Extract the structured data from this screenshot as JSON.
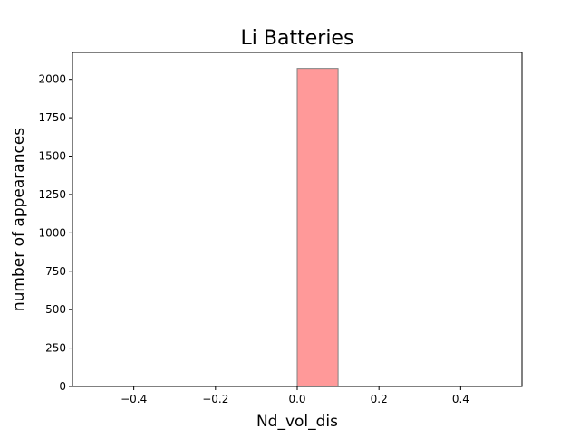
{
  "chart_data": {
    "type": "bar",
    "title": "Li Batteries",
    "xlabel": "Nd_vol_dis",
    "ylabel": "number of appearances",
    "xlim": [
      -0.55,
      0.55
    ],
    "ylim": [
      0,
      2175
    ],
    "grid": false,
    "x_ticks": [
      {
        "value": -0.4,
        "label": "−0.4"
      },
      {
        "value": -0.2,
        "label": "−0.2"
      },
      {
        "value": 0.0,
        "label": "0.0"
      },
      {
        "value": 0.2,
        "label": "0.2"
      },
      {
        "value": 0.4,
        "label": "0.4"
      }
    ],
    "y_ticks": [
      {
        "value": 0,
        "label": "0"
      },
      {
        "value": 250,
        "label": "250"
      },
      {
        "value": 500,
        "label": "500"
      },
      {
        "value": 750,
        "label": "750"
      },
      {
        "value": 1000,
        "label": "1000"
      },
      {
        "value": 1250,
        "label": "1250"
      },
      {
        "value": 1500,
        "label": "1500"
      },
      {
        "value": 1750,
        "label": "1750"
      },
      {
        "value": 2000,
        "label": "2000"
      }
    ],
    "bins": [
      {
        "start": -0.5,
        "end": -0.4,
        "count": 0
      },
      {
        "start": -0.4,
        "end": -0.3,
        "count": 0
      },
      {
        "start": -0.3,
        "end": -0.2,
        "count": 0
      },
      {
        "start": -0.2,
        "end": -0.1,
        "count": 0
      },
      {
        "start": -0.1,
        "end": 0.0,
        "count": 0
      },
      {
        "start": 0.0,
        "end": 0.1,
        "count": 2071
      },
      {
        "start": 0.1,
        "end": 0.2,
        "count": 0
      },
      {
        "start": 0.2,
        "end": 0.3,
        "count": 0
      },
      {
        "start": 0.3,
        "end": 0.4,
        "count": 0
      },
      {
        "start": 0.4,
        "end": 0.5,
        "count": 0
      }
    ],
    "colors": {
      "bar_fill": "#ff9999",
      "bar_edge": "#808080"
    }
  }
}
